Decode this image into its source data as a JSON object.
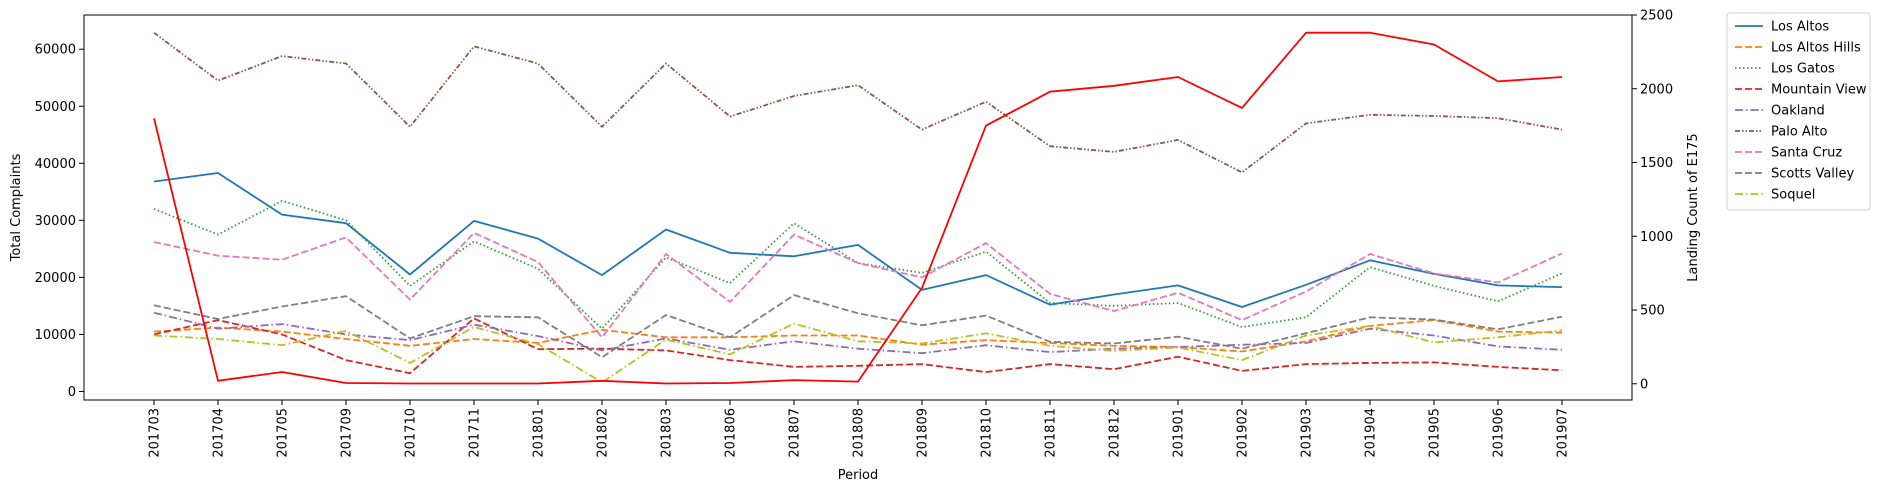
{
  "chart_data": {
    "type": "line",
    "xlabel": "Period",
    "ylabel": "Total Complaints",
    "y2label": "Landing Count of E175",
    "ylim": [
      -1500,
      66000
    ],
    "y2lim": [
      -110,
      2500
    ],
    "yticks": [
      0,
      10000,
      20000,
      30000,
      40000,
      50000,
      60000
    ],
    "y2ticks": [
      0,
      500,
      1000,
      1500,
      2000,
      2500
    ],
    "categories": [
      "201703",
      "201704",
      "201705",
      "201709",
      "201710",
      "201711",
      "201801",
      "201802",
      "201803",
      "201806",
      "201807",
      "201808",
      "201809",
      "201810",
      "201811",
      "201812",
      "201901",
      "201902",
      "201903",
      "201904",
      "201905",
      "201906",
      "201907"
    ],
    "legend_position": "outside-top-right",
    "series": [
      {
        "name": "Los Altos",
        "color": "#1f77b4",
        "dash": "solid",
        "axis": "left",
        "values": [
          36800,
          38300,
          31000,
          29500,
          20500,
          29900,
          26800,
          20400,
          28400,
          24300,
          23700,
          25700,
          17800,
          20400,
          15200,
          17000,
          18600,
          14800,
          18700,
          23000,
          20600,
          18600,
          18300
        ]
      },
      {
        "name": "Los Altos Hills",
        "color": "#ff7f0e",
        "dash": "dashed",
        "axis": "left",
        "values": [
          10500,
          11200,
          10500,
          9200,
          8000,
          9200,
          8500,
          10800,
          9500,
          9500,
          9800,
          9800,
          8200,
          9000,
          8500,
          8000,
          7800,
          7000,
          8800,
          11500,
          12500,
          10500,
          10300
        ]
      },
      {
        "name": "Los Gatos",
        "color": "#2ca02c",
        "dash": "dotted",
        "axis": "left",
        "values": [
          32000,
          27500,
          33400,
          30000,
          18500,
          26300,
          21500,
          11000,
          23500,
          19000,
          29500,
          22500,
          20800,
          24500,
          15500,
          15000,
          15500,
          11300,
          13000,
          21800,
          18500,
          15800,
          20700
        ]
      },
      {
        "name": "Mountain View",
        "color": "#d62728",
        "dash": "dashed",
        "axis": "left",
        "values": [
          10000,
          12500,
          10000,
          5500,
          3200,
          12800,
          7400,
          7500,
          7200,
          5500,
          4300,
          4500,
          4800,
          3400,
          4800,
          3900,
          6100,
          3600,
          4800,
          5000,
          5100,
          4300,
          3700
        ]
      },
      {
        "name": "Oakland",
        "color": "#9467bd",
        "dash": "dashdot",
        "axis": "left",
        "values": [
          13800,
          11000,
          11800,
          10000,
          9000,
          11700,
          9700,
          7200,
          9300,
          7300,
          8800,
          7500,
          6700,
          8100,
          6900,
          7500,
          7800,
          8200,
          8500,
          11000,
          9800,
          7900,
          7300
        ]
      },
      {
        "name": "Palo Alto",
        "color": "#8c564b",
        "dash": "dashdotdot",
        "axis": "left",
        "values": [
          62900,
          54500,
          58800,
          57500,
          46400,
          60500,
          57500,
          46400,
          57500,
          48200,
          51800,
          53700,
          45900,
          50800,
          43000,
          42000,
          44100,
          38400,
          47000,
          48500,
          48300,
          47900,
          45900
        ]
      },
      {
        "name": "Santa Cruz",
        "color": "#e377c2",
        "dash": "dashed",
        "axis": "left",
        "values": [
          26200,
          23800,
          23100,
          27000,
          16100,
          27800,
          22700,
          9500,
          24100,
          15700,
          27500,
          22500,
          20000,
          26000,
          17100,
          14100,
          17300,
          12500,
          17500,
          24100,
          20700,
          19100,
          24200
        ]
      },
      {
        "name": "Scotts Valley",
        "color": "#7f7f7f",
        "dash": "dashed",
        "axis": "left",
        "values": [
          15100,
          12700,
          14900,
          16700,
          9300,
          13200,
          13000,
          6000,
          13400,
          9500,
          16900,
          13700,
          11600,
          13300,
          8700,
          8400,
          9600,
          7500,
          10200,
          13000,
          12600,
          10900,
          13100
        ]
      },
      {
        "name": "Soquel",
        "color": "#bcbd22",
        "dash": "dashdot",
        "axis": "left",
        "values": [
          9800,
          9200,
          8100,
          10600,
          5000,
          11300,
          8300,
          1600,
          9100,
          6500,
          11900,
          8800,
          8400,
          10200,
          8000,
          7100,
          7700,
          5500,
          9800,
          11500,
          8600,
          9500,
          10700
        ]
      },
      {
        "name": "",
        "color": "#ff0000",
        "dash": "solid",
        "axis": "right",
        "values": [
          1800,
          20,
          80,
          5,
          2,
          2,
          2,
          20,
          2,
          5,
          25,
          15,
          650,
          1750,
          1980,
          2020,
          2080,
          1870,
          2380,
          2380,
          2300,
          2050,
          2080
        ]
      }
    ]
  }
}
